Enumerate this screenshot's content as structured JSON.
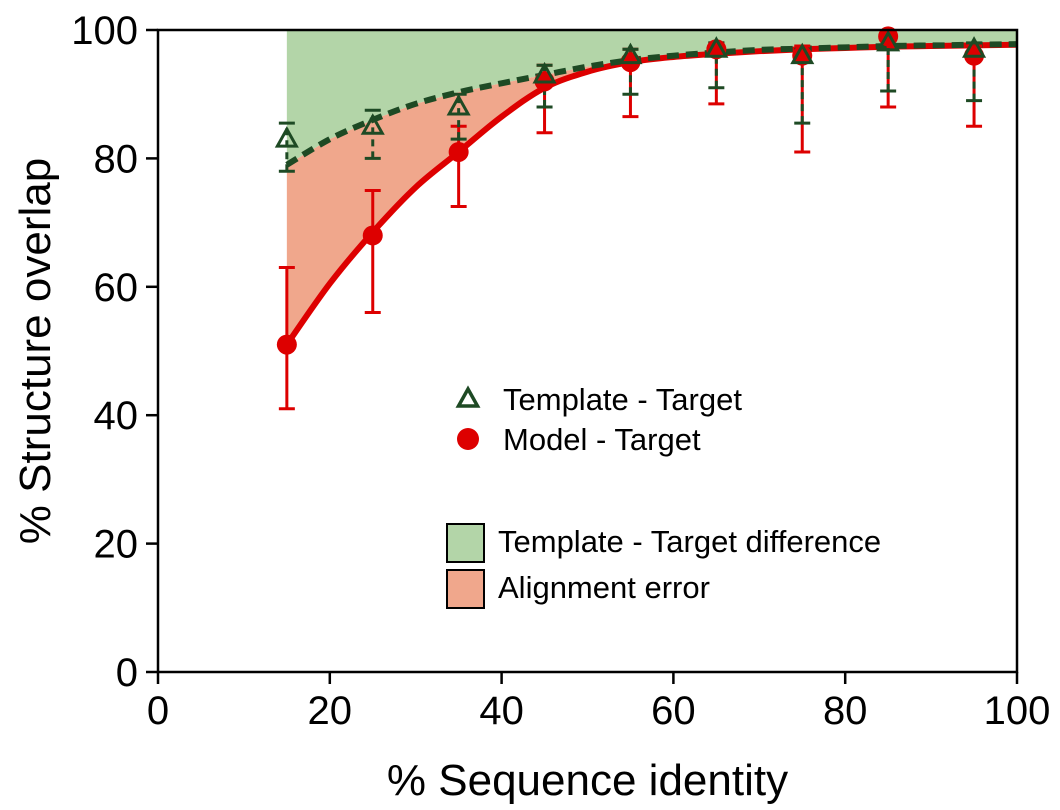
{
  "chart_data": {
    "type": "line",
    "xlabel": "% Sequence identity",
    "ylabel": "% Structure overlap",
    "xlim": [
      0,
      100
    ],
    "ylim": [
      0,
      100
    ],
    "x_ticks": [
      0,
      20,
      40,
      60,
      80,
      100
    ],
    "y_ticks": [
      0,
      20,
      40,
      60,
      80,
      100
    ],
    "grid": false,
    "series": [
      {
        "name": "Template - Target",
        "marker": "open-triangle",
        "color": "#1e4a24",
        "x": [
          15,
          25,
          35,
          45,
          55,
          65,
          75,
          85,
          95
        ],
        "y": [
          83,
          85,
          88,
          93,
          96,
          97,
          96,
          98,
          97
        ],
        "err_low": [
          78,
          80,
          83,
          88,
          90,
          91,
          85.5,
          90.5,
          89
        ],
        "err_high": [
          85.5,
          87.5,
          90,
          94.5,
          97,
          98,
          97,
          99,
          98
        ],
        "fit_line": "dashed",
        "fit": {
          "x": [
            15,
            20,
            25,
            30,
            35,
            40,
            45,
            50,
            55,
            60,
            65,
            70,
            75,
            80,
            85,
            90,
            95,
            100
          ],
          "y": [
            79,
            83,
            86,
            88.5,
            90.3,
            91.7,
            93,
            94.3,
            95.3,
            96,
            96.5,
            96.9,
            97.1,
            97.3,
            97.5,
            97.6,
            97.7,
            97.8
          ]
        }
      },
      {
        "name": "Model - Target",
        "marker": "filled-circle",
        "color": "#dd0000",
        "x": [
          15,
          25,
          35,
          45,
          55,
          65,
          75,
          85,
          95
        ],
        "y": [
          51,
          68,
          81,
          92,
          95,
          97,
          96,
          99,
          96
        ],
        "err_low": [
          41,
          56,
          72.5,
          84,
          86.5,
          88.5,
          81,
          88,
          85
        ],
        "err_high": [
          63,
          75,
          85,
          94.5,
          97,
          98,
          97.5,
          99.5,
          97.5
        ],
        "fit_line": "solid",
        "fit": {
          "x": [
            15,
            20,
            25,
            30,
            35,
            40,
            45,
            50,
            55,
            60,
            65,
            70,
            75,
            80,
            85,
            90,
            95,
            100
          ],
          "y": [
            51,
            60.5,
            68.5,
            75.5,
            81,
            86.5,
            91,
            93.5,
            95,
            95.8,
            96.3,
            96.7,
            97,
            97.2,
            97.4,
            97.5,
            97.6,
            97.7
          ]
        }
      }
    ],
    "filled_regions": [
      {
        "name": "Template - Target difference",
        "color": "#b3d5a8",
        "between": [
          "Template - Target fit",
          "100"
        ],
        "x_start": 15
      },
      {
        "name": "Alignment error",
        "color": "#f0a78c",
        "between": [
          "Model - Target fit",
          "Template - Target fit"
        ],
        "x_start": 15
      }
    ],
    "legend": {
      "placement": "center-right",
      "entries": [
        {
          "label": "Template - Target",
          "symbol": "open-triangle"
        },
        {
          "label": "Model - Target",
          "symbol": "filled-circle"
        },
        {
          "label": "Template - Target difference",
          "symbol": "green-box"
        },
        {
          "label": "Alignment error",
          "symbol": "salmon-box"
        }
      ]
    }
  }
}
